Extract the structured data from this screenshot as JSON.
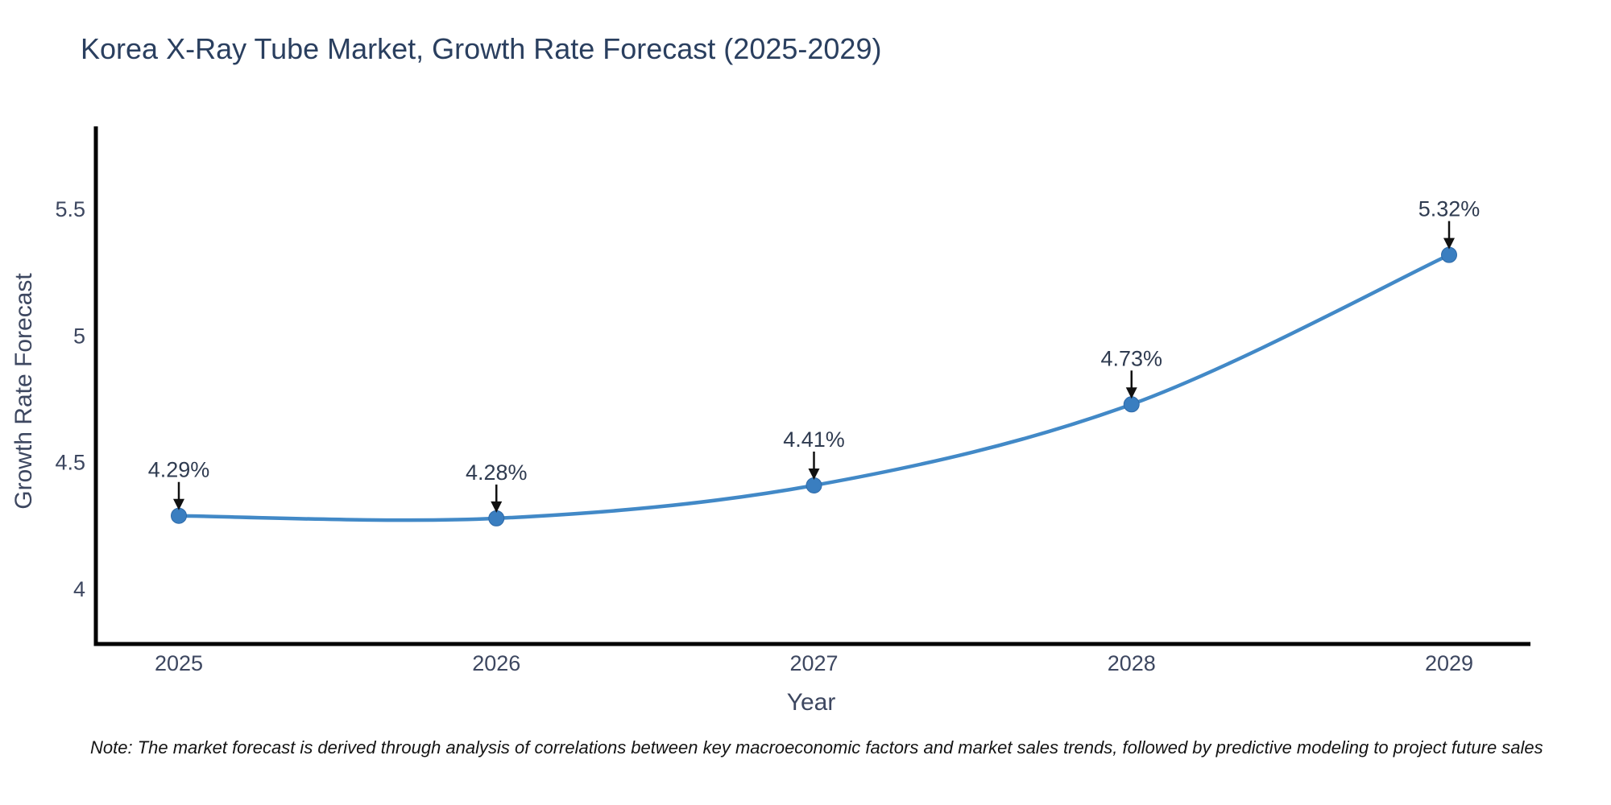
{
  "chart_data": {
    "type": "line",
    "title": "Korea X-Ray Tube Market, Growth Rate Forecast (2025-2029)",
    "xlabel": "Year",
    "ylabel": "Growth Rate Forecast",
    "x": [
      2025,
      2026,
      2027,
      2028,
      2029
    ],
    "values": [
      4.29,
      4.28,
      4.41,
      4.73,
      5.32
    ],
    "point_labels": [
      "4.29%",
      "4.28%",
      "4.41%",
      "4.73%",
      "5.32%"
    ],
    "xticks": [
      "2025",
      "2026",
      "2027",
      "2028",
      "2029"
    ],
    "yticks": {
      "values": [
        4,
        4.5,
        5,
        5.5
      ],
      "labels": [
        "4",
        "4.5",
        "5",
        "5.5"
      ]
    },
    "ylim": [
      3.78,
      5.82
    ],
    "grid": false,
    "legend": "none",
    "line_shape": "spline",
    "line_color": "#4289c7",
    "marker_color": "#3a7ec0",
    "axis_color": "#000000",
    "arrow_color": "#111111",
    "title_color": "#2a3f5f",
    "note": "Note: The market forecast is derived through analysis of correlations between key macroeconomic factors and market sales trends, followed by predictive modeling to project future sales"
  }
}
